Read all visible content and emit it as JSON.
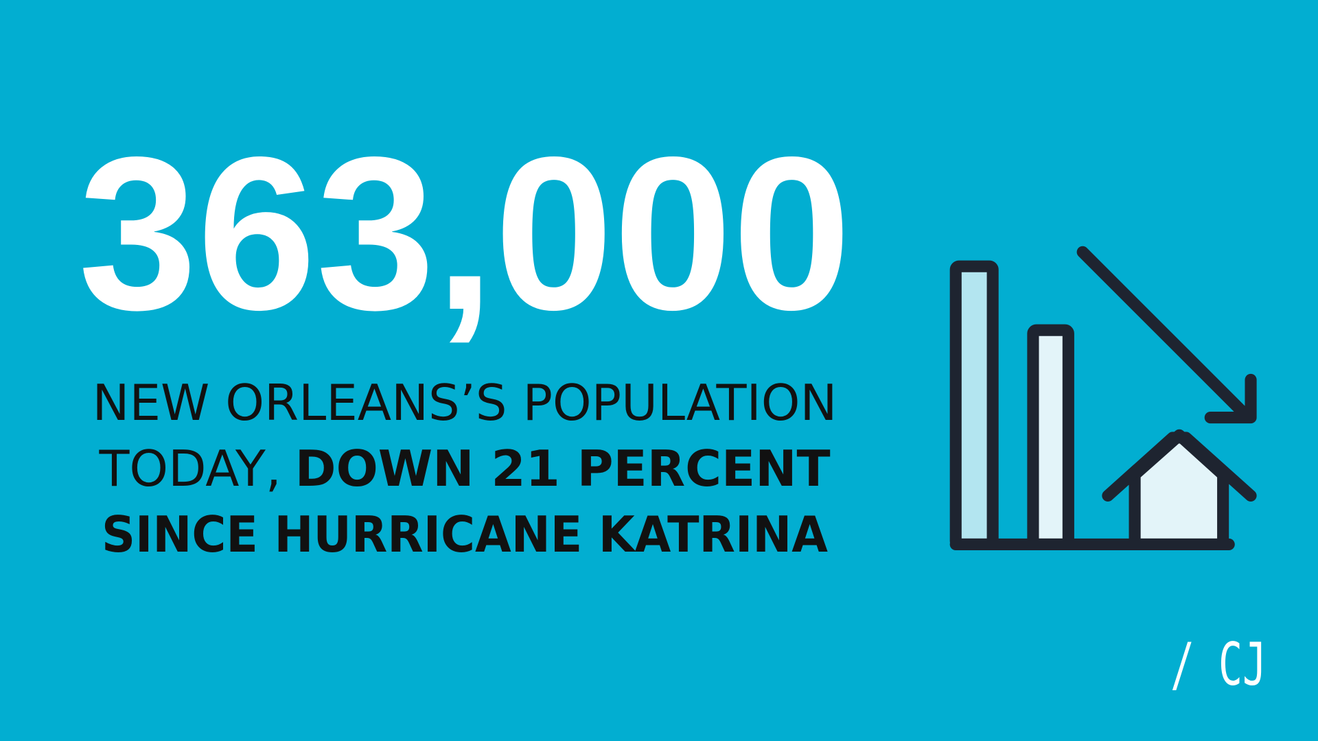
{
  "headline": "363,000",
  "caption": {
    "line1": "NEW ORLEANS’S POPULATION",
    "line2_regular": "TODAY,",
    "line2_bold": "DOWN 21 PERCENT",
    "line3": "SINCE HURRICANE KATRINA"
  },
  "logo": "/ CJ"
}
